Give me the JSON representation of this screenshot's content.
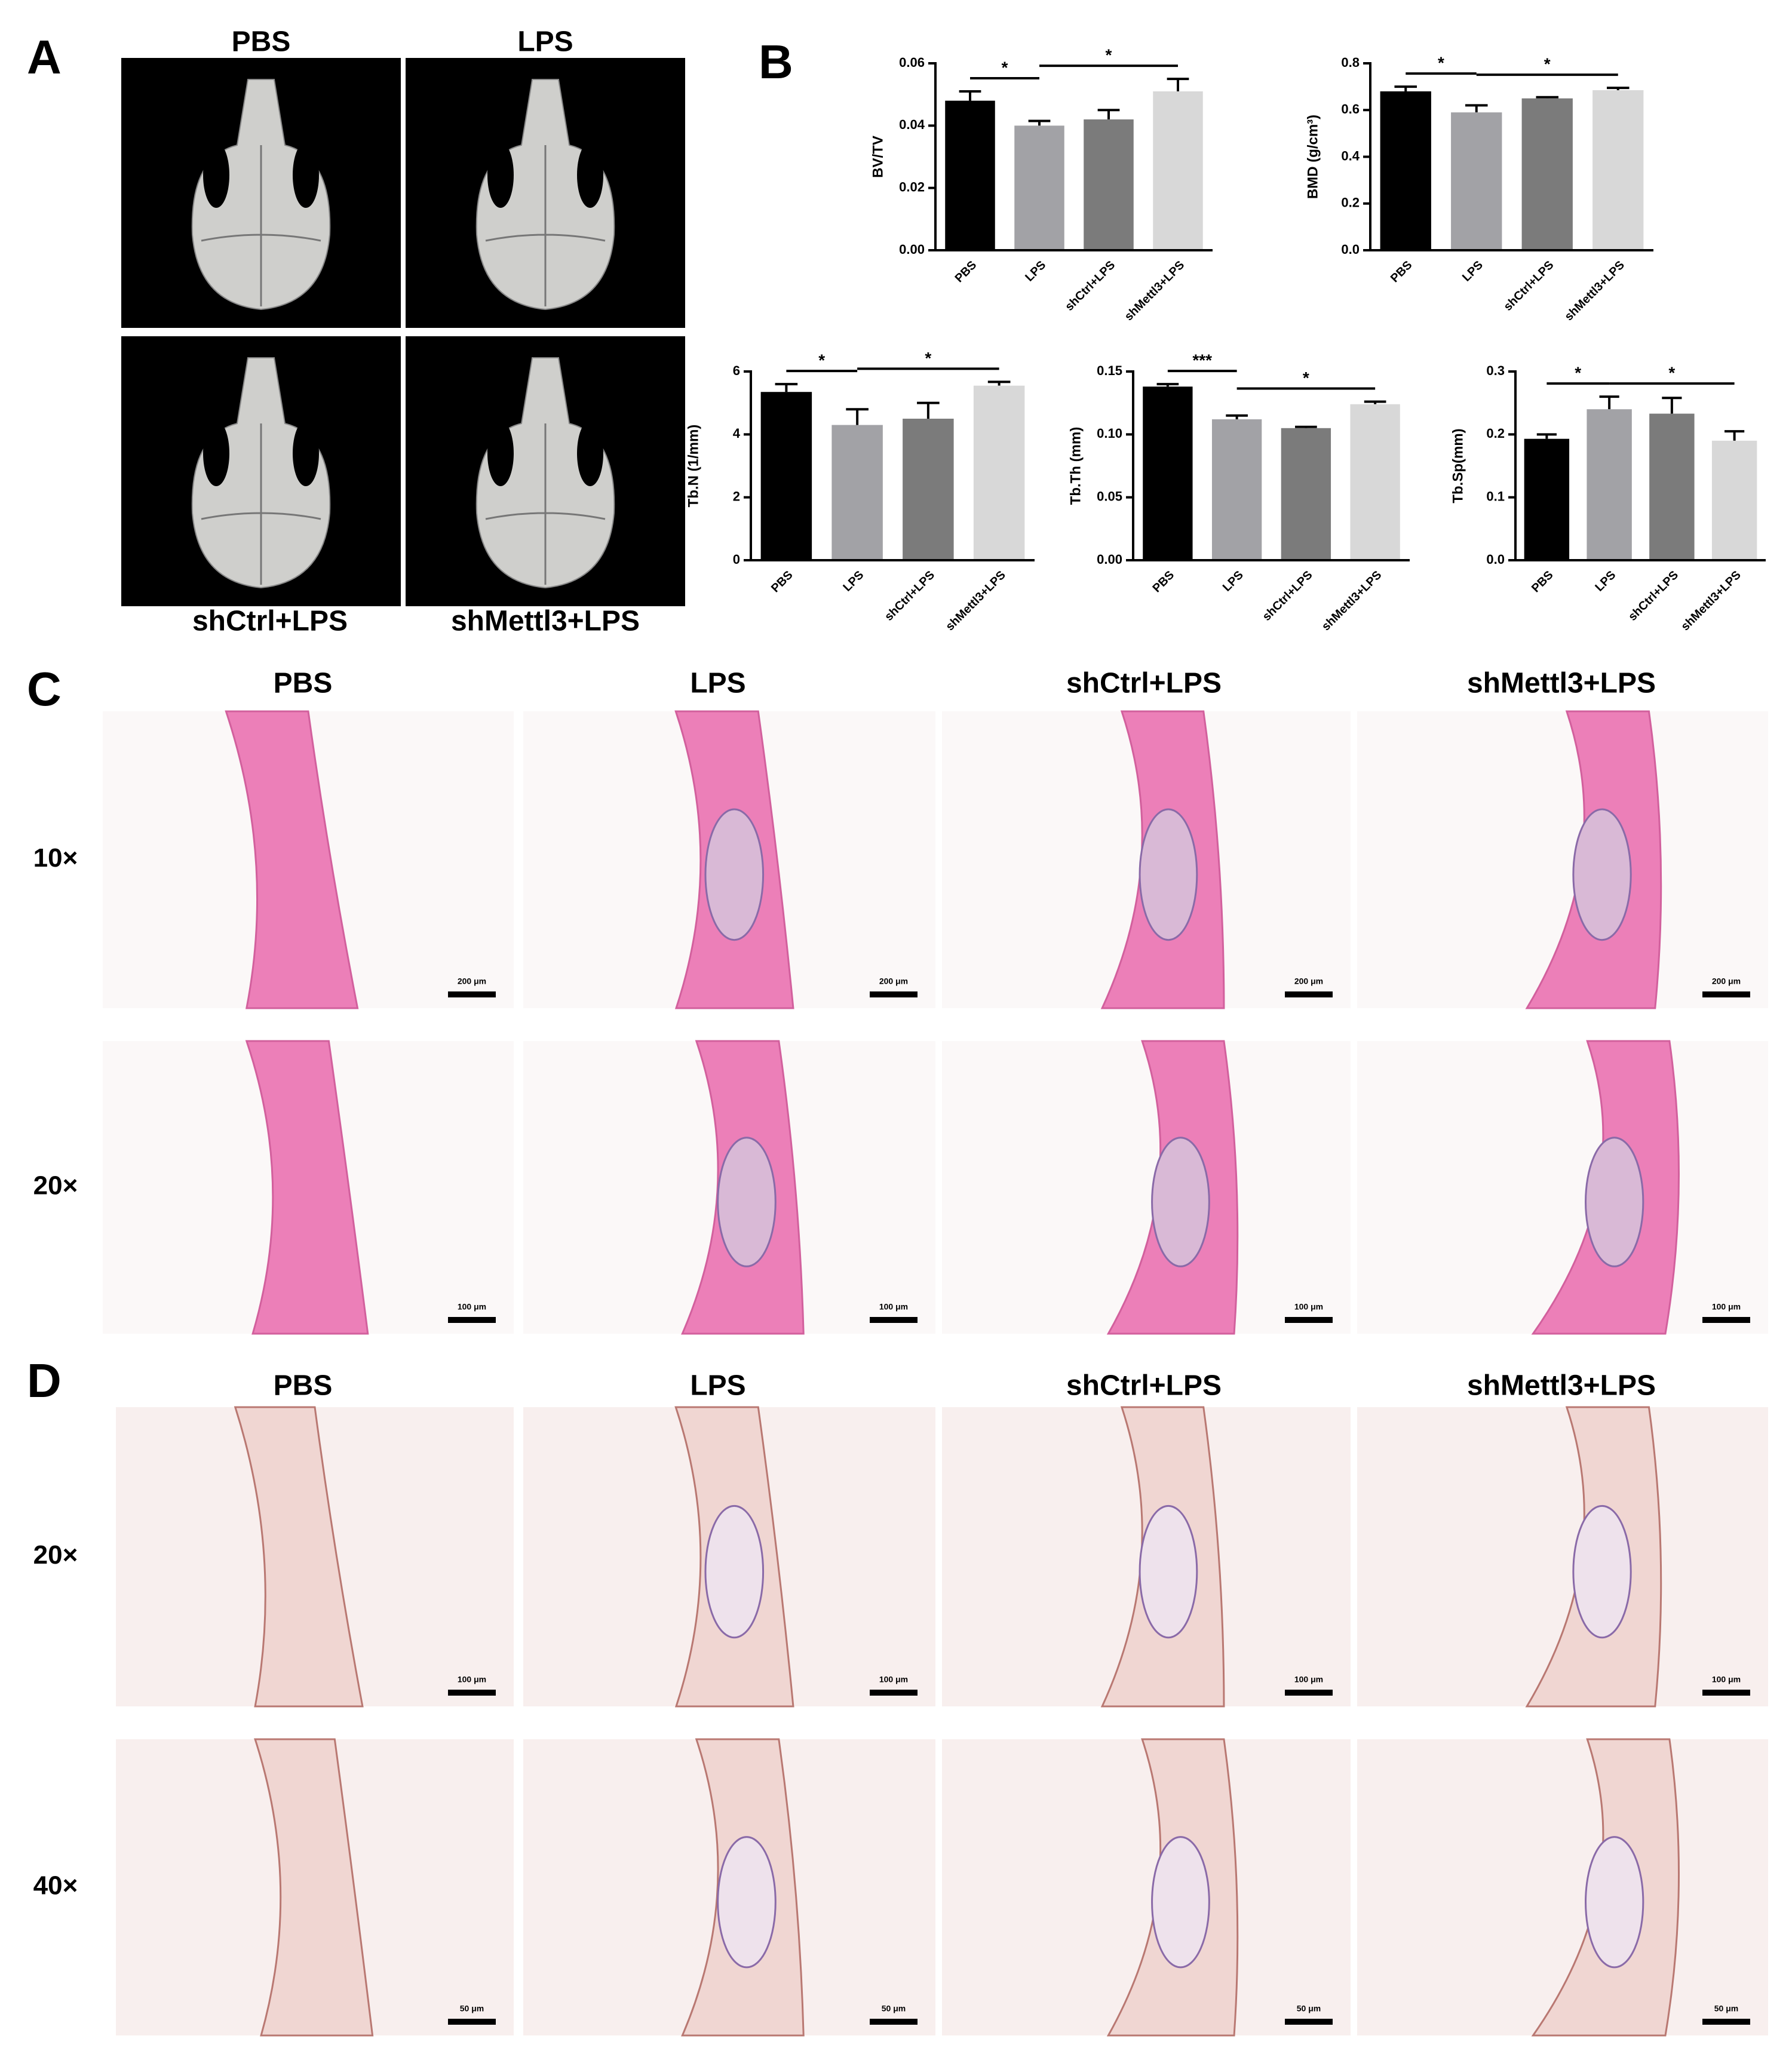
{
  "panel_labels": [
    "A",
    "B",
    "C",
    "D"
  ],
  "panel_a": {
    "groups": [
      "PBS",
      "LPS",
      "shCtrl+LPS",
      "shMettl3+LPS"
    ]
  },
  "panel_c": {
    "groups": [
      "PBS",
      "LPS",
      "shCtrl+LPS",
      "shMettl3+LPS"
    ],
    "rows": [
      "10×",
      "20×"
    ],
    "scale_bars": [
      "200 μm",
      "100 μm"
    ]
  },
  "panel_d": {
    "groups": [
      "PBS",
      "LPS",
      "shCtrl+LPS",
      "shMettl3+LPS"
    ],
    "rows": [
      "20×",
      "40×"
    ],
    "scale_bars": [
      "100 μm",
      "50 μm"
    ]
  },
  "chart_data": [
    {
      "type": "bar",
      "ylabel": "BV/TV",
      "categories": [
        "PBS",
        "LPS",
        "shCtrl+LPS",
        "shMettl3+LPS"
      ],
      "values": [
        0.048,
        0.04,
        0.042,
        0.051
      ],
      "errors": [
        0.003,
        0.0015,
        0.003,
        0.004
      ],
      "colors": [
        "#000000",
        "#a2a2a6",
        "#7b7b7b",
        "#d8d8d8"
      ],
      "ylim": [
        0,
        0.06
      ],
      "yticks": [
        {
          "value": 0,
          "label": "0.00"
        },
        {
          "value": 0.02,
          "label": "0.02"
        },
        {
          "value": 0.04,
          "label": "0.04"
        },
        {
          "value": 0.06,
          "label": "0.06"
        }
      ],
      "significance": [
        {
          "from": 0,
          "to": 1,
          "label": "*"
        },
        {
          "from": 1,
          "to": 3,
          "label": "*"
        }
      ]
    },
    {
      "type": "bar",
      "ylabel": "BMD (g/cm³)",
      "categories": [
        "PBS",
        "LPS",
        "shCtrl+LPS",
        "shMettl3+LPS"
      ],
      "values": [
        0.68,
        0.59,
        0.65,
        0.685
      ],
      "errors": [
        0.02,
        0.03,
        0.005,
        0.01
      ],
      "colors": [
        "#000000",
        "#a2a2a6",
        "#7b7b7b",
        "#d8d8d8"
      ],
      "ylim": [
        0,
        0.8
      ],
      "yticks": [
        {
          "value": 0,
          "label": "0.0"
        },
        0.2,
        0.4,
        0.6,
        0.8
      ],
      "significance": [
        {
          "from": 0,
          "to": 1,
          "label": "*"
        },
        {
          "from": 1,
          "to": 3,
          "label": "*"
        }
      ]
    },
    {
      "type": "bar",
      "ylabel": "Tb.N (1/mm)",
      "categories": [
        "PBS",
        "LPS",
        "shCtrl+LPS",
        "shMettl3+LPS"
      ],
      "values": [
        5.35,
        4.3,
        4.5,
        5.55
      ],
      "errors": [
        0.25,
        0.5,
        0.5,
        0.12
      ],
      "colors": [
        "#000000",
        "#a2a2a6",
        "#7b7b7b",
        "#d8d8d8"
      ],
      "ylim": [
        0,
        6
      ],
      "yticks": [
        0,
        2,
        4,
        6
      ],
      "significance": [
        {
          "from": 0,
          "to": 1,
          "label": "*"
        },
        {
          "from": 1,
          "to": 3,
          "label": "*"
        }
      ]
    },
    {
      "type": "bar",
      "ylabel": "Tb.Th (mm)",
      "categories": [
        "PBS",
        "LPS",
        "shCtrl+LPS",
        "shMettl3+LPS"
      ],
      "values": [
        0.138,
        0.112,
        0.105,
        0.124
      ],
      "errors": [
        0.002,
        0.003,
        0.001,
        0.002
      ],
      "colors": [
        "#000000",
        "#a2a2a6",
        "#7b7b7b",
        "#d8d8d8"
      ],
      "ylim": [
        0,
        0.15
      ],
      "yticks": [
        {
          "value": 0,
          "label": "0.00"
        },
        0.05,
        {
          "value": 0.1,
          "label": "0.10"
        },
        0.15
      ],
      "significance": [
        {
          "from": 0,
          "to": 1,
          "label": "***"
        },
        {
          "from": 1,
          "to": 3,
          "label": "*"
        }
      ]
    },
    {
      "type": "bar",
      "ylabel": "Tb.Sp(mm)",
      "categories": [
        "PBS",
        "LPS",
        "shCtrl+LPS",
        "shMettl3+LPS"
      ],
      "values": [
        0.193,
        0.24,
        0.233,
        0.19
      ],
      "errors": [
        0.007,
        0.02,
        0.025,
        0.015
      ],
      "colors": [
        "#000000",
        "#a2a2a6",
        "#7b7b7b",
        "#d8d8d8"
      ],
      "ylim": [
        0,
        0.3
      ],
      "yticks": [
        {
          "value": 0,
          "label": "0.0"
        },
        0.1,
        0.2,
        0.3
      ],
      "significance": [
        {
          "from": 0,
          "to": 1,
          "label": "*"
        },
        {
          "from": 1,
          "to": 3,
          "label": "*"
        }
      ]
    }
  ]
}
